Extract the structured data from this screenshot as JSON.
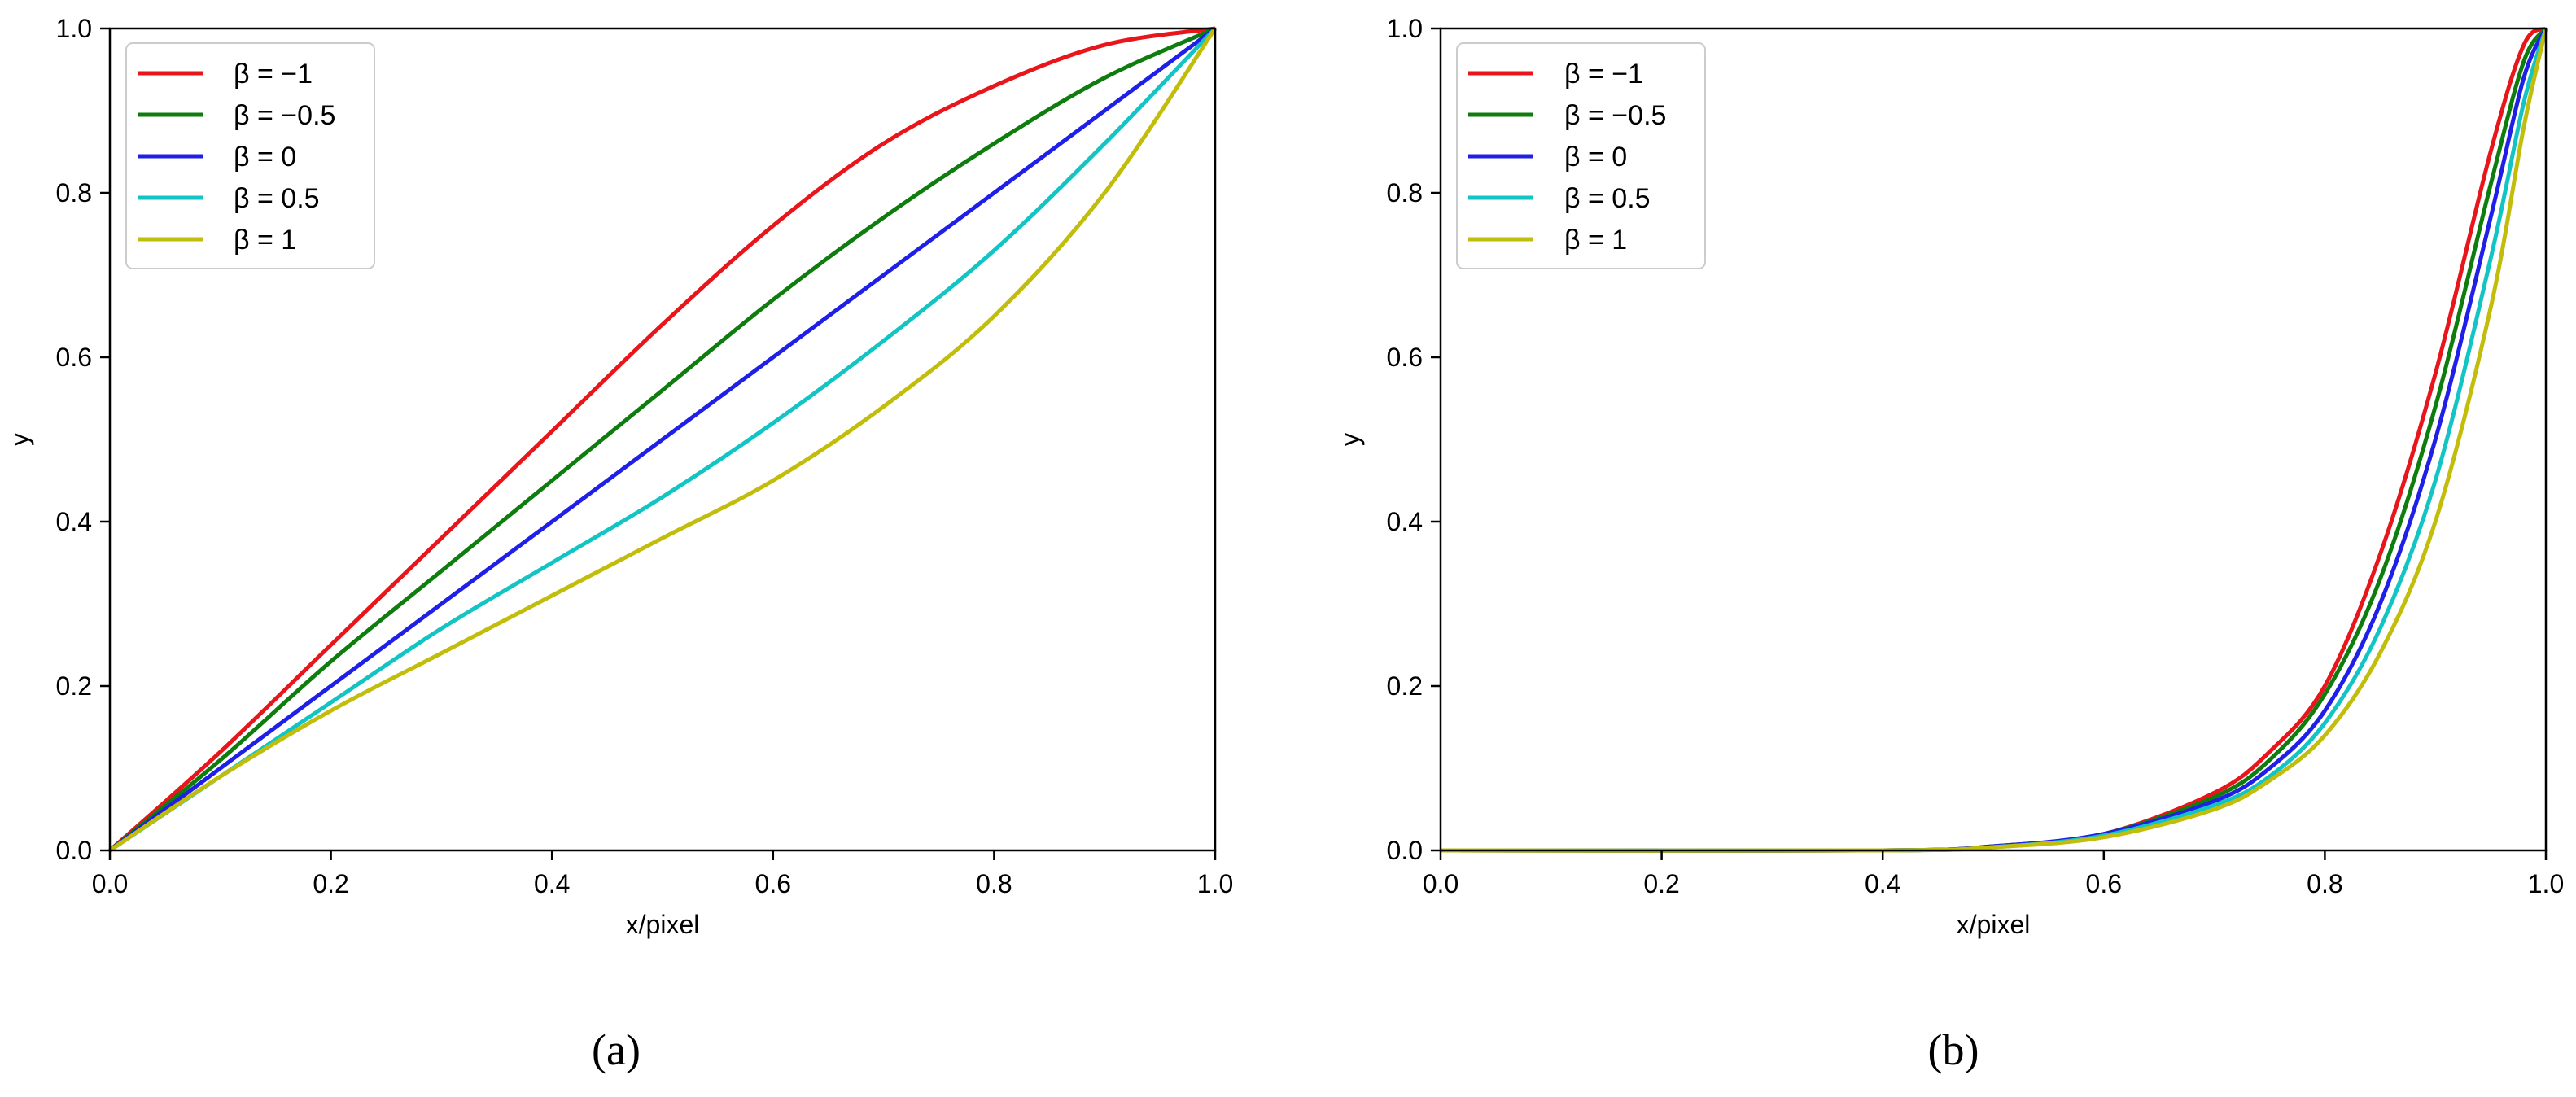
{
  "chart_data": [
    {
      "type": "line",
      "panel_label": "(a)",
      "title": "",
      "xlabel": "x/pixel",
      "ylabel": "y",
      "xlim": [
        0.0,
        1.0
      ],
      "ylim": [
        0.0,
        1.0
      ],
      "xticks": [
        "0.0",
        "0.2",
        "0.4",
        "0.6",
        "0.8",
        "1.0"
      ],
      "yticks": [
        "0.0",
        "0.2",
        "0.4",
        "0.6",
        "0.8",
        "1.0"
      ],
      "grid": false,
      "legend_position": "top-left",
      "x": [
        0.0,
        0.1,
        0.2,
        0.3,
        0.4,
        0.5,
        0.6,
        0.7,
        0.8,
        0.9,
        1.0
      ],
      "series": [
        {
          "name": "β = −1",
          "color": "#e8151b",
          "values": [
            0.0,
            0.12,
            0.25,
            0.38,
            0.51,
            0.64,
            0.76,
            0.86,
            0.93,
            0.98,
            1.0
          ]
        },
        {
          "name": "β = −0.5",
          "color": "#0e7d0e",
          "values": [
            0.0,
            0.11,
            0.23,
            0.34,
            0.45,
            0.56,
            0.67,
            0.77,
            0.86,
            0.94,
            1.0
          ]
        },
        {
          "name": "β = 0",
          "color": "#1f1fe8",
          "values": [
            0.0,
            0.1,
            0.2,
            0.3,
            0.4,
            0.5,
            0.6,
            0.7,
            0.8,
            0.9,
            1.0
          ]
        },
        {
          "name": "β = 0.5",
          "color": "#13c4c4",
          "values": [
            0.0,
            0.09,
            0.18,
            0.27,
            0.35,
            0.43,
            0.52,
            0.62,
            0.73,
            0.86,
            1.0
          ]
        },
        {
          "name": "β = 1",
          "color": "#c2bd0a",
          "values": [
            0.0,
            0.09,
            0.17,
            0.24,
            0.31,
            0.38,
            0.45,
            0.54,
            0.65,
            0.8,
            1.0
          ]
        }
      ]
    },
    {
      "type": "line",
      "panel_label": "(b)",
      "title": "",
      "xlabel": "x/pixel",
      "ylabel": "y",
      "xlim": [
        0.0,
        1.0
      ],
      "ylim": [
        0.0,
        1.0
      ],
      "xticks": [
        "0.0",
        "0.2",
        "0.4",
        "0.6",
        "0.8",
        "1.0"
      ],
      "yticks": [
        "0.0",
        "0.2",
        "0.4",
        "0.6",
        "0.8",
        "1.0"
      ],
      "grid": false,
      "legend_position": "top-left",
      "x": [
        0.0,
        0.4,
        0.5,
        0.6,
        0.7,
        0.75,
        0.8,
        0.85,
        0.9,
        0.95,
        0.98,
        1.0
      ],
      "series": [
        {
          "name": "β = −1",
          "color": "#e8151b",
          "values": [
            0.0,
            0.0,
            0.005,
            0.02,
            0.07,
            0.12,
            0.2,
            0.36,
            0.58,
            0.85,
            0.98,
            1.0
          ]
        },
        {
          "name": "β = −0.5",
          "color": "#0e7d0e",
          "values": [
            0.0,
            0.0,
            0.005,
            0.02,
            0.065,
            0.11,
            0.19,
            0.33,
            0.54,
            0.81,
            0.96,
            1.0
          ]
        },
        {
          "name": "β = 0",
          "color": "#1f1fe8",
          "values": [
            0.0,
            0.0,
            0.005,
            0.02,
            0.06,
            0.1,
            0.17,
            0.3,
            0.5,
            0.77,
            0.94,
            1.0
          ]
        },
        {
          "name": "β = 0.5",
          "color": "#13c4c4",
          "values": [
            0.0,
            0.0,
            0.004,
            0.018,
            0.055,
            0.09,
            0.155,
            0.27,
            0.45,
            0.72,
            0.91,
            1.0
          ]
        },
        {
          "name": "β = 1",
          "color": "#c2bd0a",
          "values": [
            0.0,
            0.0,
            0.004,
            0.016,
            0.05,
            0.085,
            0.14,
            0.24,
            0.4,
            0.66,
            0.88,
            1.0
          ]
        }
      ]
    }
  ]
}
